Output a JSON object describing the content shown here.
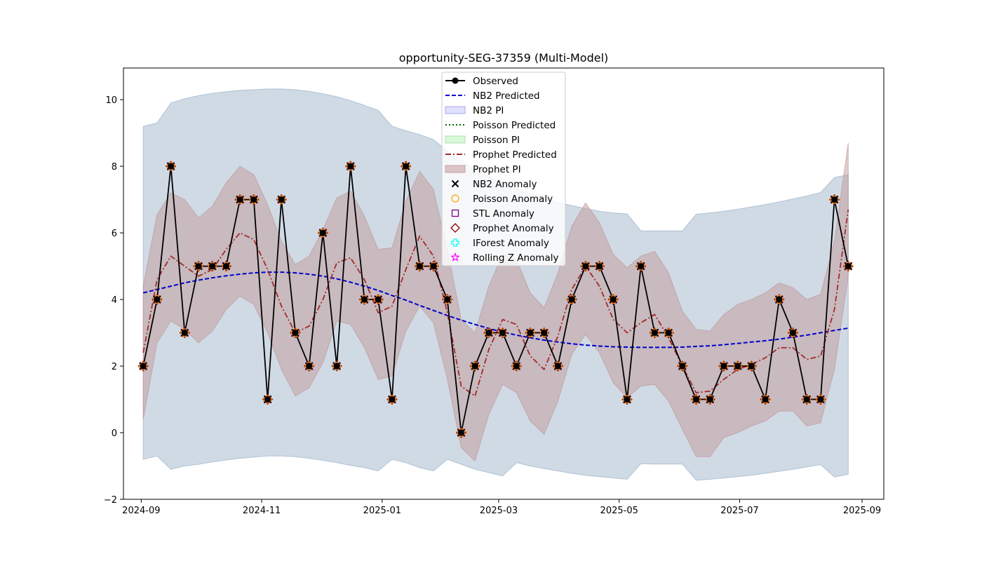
{
  "chart_data": {
    "type": "line",
    "title": "opportunity-SEG-37359 (Multi-Model)",
    "xlabel": "",
    "ylabel": "",
    "xlim": [
      "2024-08-23",
      "2025-09-12"
    ],
    "ylim": [
      -2,
      10.95
    ],
    "x_ticks": [
      "2024-09",
      "2024-11",
      "2025-01",
      "2025-03",
      "2025-05",
      "2025-07",
      "2025-09"
    ],
    "y_ticks": [
      -2,
      0,
      2,
      4,
      6,
      8,
      10
    ],
    "grid": false,
    "legend_position": "upper center",
    "legend": [
      "Observed",
      "NB2 Predicted",
      "NB2 PI",
      "Poisson Predicted",
      "Poisson PI",
      "Prophet Predicted",
      "Prophet PI",
      "NB2 Anomaly",
      "Poisson Anomaly",
      "STL Anomaly",
      "Prophet Anomaly",
      "IForest Anomaly",
      "Rolling Z Anomaly"
    ],
    "colors": {
      "observed": "#000000",
      "nb2": "#0000cc",
      "nb2_band": "#9fb6cc",
      "poisson": "#006400",
      "poisson_band": "#90ee90",
      "prophet": "#a52a2a",
      "prophet_band": "#c29a9a",
      "nb2_anomaly": "#000000",
      "poisson_anomaly": "#ffa500",
      "stl_anomaly": "#800080",
      "prophet_anomaly": "#8b0000",
      "iforest_anomaly": "#00ffff",
      "rollingz_anomaly": "#ff00ff"
    },
    "x": [
      "2024-09-02",
      "2024-09-09",
      "2024-09-16",
      "2024-09-23",
      "2024-09-30",
      "2024-10-07",
      "2024-10-14",
      "2024-10-21",
      "2024-10-28",
      "2024-11-04",
      "2024-11-11",
      "2024-11-18",
      "2024-11-25",
      "2024-12-02",
      "2024-12-09",
      "2024-12-16",
      "2024-12-23",
      "2024-12-30",
      "2025-01-06",
      "2025-01-13",
      "2025-01-20",
      "2025-01-27",
      "2025-02-03",
      "2025-02-10",
      "2025-02-17",
      "2025-02-24",
      "2025-03-03",
      "2025-03-10",
      "2025-03-17",
      "2025-03-24",
      "2025-03-31",
      "2025-04-07",
      "2025-04-14",
      "2025-04-21",
      "2025-04-28",
      "2025-05-05",
      "2025-05-12",
      "2025-05-19",
      "2025-05-26",
      "2025-06-02",
      "2025-06-09",
      "2025-06-16",
      "2025-06-23",
      "2025-06-30",
      "2025-07-07",
      "2025-07-14",
      "2025-07-21",
      "2025-07-28",
      "2025-08-04",
      "2025-08-11",
      "2025-08-18",
      "2025-08-25"
    ],
    "series": [
      {
        "name": "Observed",
        "values": [
          2,
          4,
          8,
          3,
          5,
          5,
          5,
          7,
          7,
          1,
          7,
          3,
          2,
          6,
          2,
          8,
          4,
          4,
          1,
          8,
          5,
          5,
          4,
          0,
          2,
          3,
          3,
          2,
          3,
          3,
          2,
          4,
          5,
          5,
          4,
          1,
          5,
          3,
          3,
          2,
          1,
          1,
          2,
          2,
          2,
          1,
          4,
          3,
          1,
          1,
          7,
          5
        ]
      },
      {
        "name": "NB2 Predicted",
        "values": [
          4.2,
          4.3,
          4.4,
          4.5,
          4.58,
          4.65,
          4.71,
          4.76,
          4.8,
          4.82,
          4.82,
          4.8,
          4.76,
          4.7,
          4.62,
          4.52,
          4.4,
          4.27,
          4.12,
          3.98,
          3.82,
          3.67,
          3.52,
          3.38,
          3.25,
          3.13,
          3.02,
          2.93,
          2.85,
          2.78,
          2.72,
          2.67,
          2.63,
          2.6,
          2.58,
          2.57,
          2.56,
          2.56,
          2.56,
          2.57,
          2.59,
          2.61,
          2.64,
          2.68,
          2.72,
          2.76,
          2.81,
          2.87,
          2.93,
          3.0,
          3.07,
          3.14
        ]
      },
      {
        "name": "Prophet Predicted",
        "values": [
          2.4,
          4.6,
          5.3,
          5.0,
          4.7,
          4.9,
          5.5,
          6.0,
          5.8,
          4.9,
          3.8,
          3.0,
          3.2,
          4.0,
          5.1,
          5.25,
          4.6,
          3.6,
          3.8,
          4.9,
          5.9,
          5.3,
          3.6,
          1.4,
          1.1,
          2.5,
          3.4,
          3.25,
          2.3,
          1.9,
          2.9,
          4.3,
          5.0,
          4.4,
          3.4,
          3.0,
          3.3,
          3.55,
          2.85,
          2.0,
          1.2,
          1.25,
          1.6,
          1.9,
          2.05,
          2.25,
          2.55,
          2.55,
          2.2,
          2.3,
          3.7,
          6.7
        ]
      }
    ],
    "nb2_pi": {
      "lower": [
        -0.8,
        -0.7,
        -1.1,
        -1.0,
        -0.95,
        -0.88,
        -0.82,
        -0.77,
        -0.73,
        -0.7,
        -0.7,
        -0.72,
        -0.77,
        -0.83,
        -0.9,
        -0.98,
        -1.05,
        -1.15,
        -0.8,
        -0.9,
        -1.05,
        -1.15,
        -0.8,
        -0.95,
        -1.1,
        -1.2,
        -1.3,
        -0.9,
        -1.0,
        -1.08,
        -1.15,
        -1.22,
        -1.28,
        -1.32,
        -1.36,
        -1.4,
        -0.93,
        -0.94,
        -0.94,
        -0.94,
        -1.43,
        -1.4,
        -1.36,
        -1.32,
        -1.28,
        -1.22,
        -1.16,
        -1.1,
        -1.03,
        -0.96,
        -1.33,
        -1.25
      ],
      "upper": [
        9.2,
        9.3,
        9.9,
        10.03,
        10.12,
        10.19,
        10.24,
        10.28,
        10.3,
        10.32,
        10.32,
        10.3,
        10.25,
        10.18,
        10.09,
        9.97,
        9.83,
        9.68,
        9.2,
        9.07,
        8.95,
        8.8,
        8.45,
        8.17,
        7.92,
        7.7,
        7.5,
        7.33,
        7.18,
        7.05,
        6.92,
        6.82,
        6.73,
        6.65,
        6.6,
        6.57,
        6.06,
        6.06,
        6.06,
        6.06,
        6.56,
        6.6,
        6.65,
        6.71,
        6.78,
        6.85,
        6.93,
        7.02,
        7.11,
        7.21,
        7.66,
        7.75
      ]
    },
    "prophet_pi": {
      "lower": [
        0.4,
        2.7,
        3.35,
        3.1,
        2.7,
        3.05,
        3.7,
        4.1,
        3.85,
        3.0,
        1.9,
        1.1,
        1.35,
        2.1,
        3.35,
        3.25,
        2.55,
        1.6,
        1.7,
        3.05,
        3.8,
        3.3,
        1.6,
        -0.45,
        -0.85,
        0.55,
        1.45,
        1.2,
        0.35,
        -0.05,
        0.95,
        2.35,
        2.95,
        2.4,
        1.5,
        1.05,
        1.4,
        1.45,
        0.95,
        0.1,
        -0.72,
        -0.72,
        -0.15,
        0.0,
        0.2,
        0.35,
        0.65,
        0.65,
        0.2,
        0.3,
        1.9,
        4.7
      ],
      "upper": [
        4.4,
        6.55,
        7.2,
        7.0,
        6.45,
        6.8,
        7.5,
        8.0,
        7.75,
        6.85,
        5.75,
        5.05,
        5.3,
        6.1,
        7.05,
        7.25,
        6.5,
        5.5,
        5.55,
        6.95,
        7.85,
        7.3,
        5.5,
        3.4,
        3.0,
        4.4,
        5.35,
        5.2,
        4.2,
        3.75,
        4.8,
        6.2,
        6.9,
        6.3,
        5.35,
        4.95,
        5.3,
        5.45,
        4.8,
        3.65,
        3.1,
        3.05,
        3.55,
        3.85,
        4.0,
        4.2,
        4.5,
        4.35,
        4.0,
        4.15,
        5.75,
        8.7
      ]
    }
  }
}
